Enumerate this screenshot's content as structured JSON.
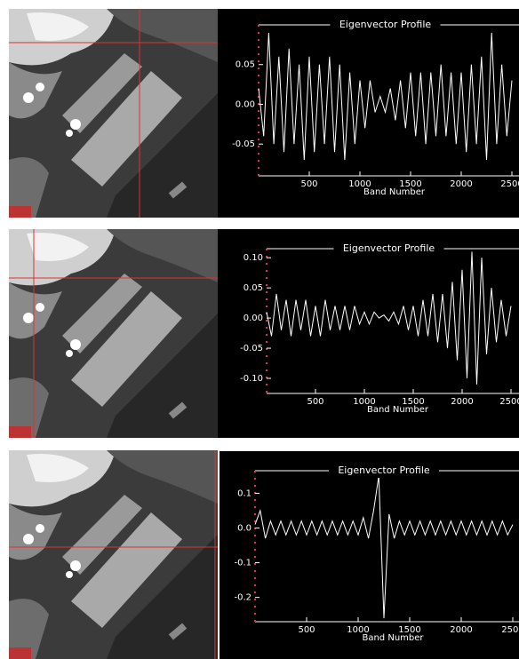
{
  "chart_data": [
    {
      "type": "line",
      "title": "Eigenvector Profile",
      "x_label": "Band Number",
      "color": "#ffffff",
      "x": [
        0,
        50,
        100,
        150,
        200,
        250,
        300,
        350,
        400,
        450,
        500,
        550,
        600,
        650,
        700,
        750,
        800,
        850,
        900,
        950,
        1000,
        1050,
        1100,
        1150,
        1200,
        1250,
        1300,
        1350,
        1400,
        1450,
        1500,
        1550,
        1600,
        1650,
        1700,
        1750,
        1800,
        1850,
        1900,
        1950,
        2000,
        2050,
        2100,
        2150,
        2200,
        2250,
        2300,
        2350,
        2400,
        2450,
        2500
      ],
      "values": [
        0.02,
        -0.04,
        0.09,
        -0.05,
        0.06,
        -0.06,
        0.07,
        -0.05,
        0.05,
        -0.07,
        0.06,
        -0.06,
        0.05,
        -0.05,
        0.06,
        -0.06,
        0.05,
        -0.07,
        0.04,
        -0.05,
        0.03,
        -0.03,
        0.03,
        -0.01,
        0.01,
        -0.01,
        0.02,
        -0.02,
        0.03,
        -0.03,
        0.04,
        -0.04,
        0.04,
        -0.05,
        0.04,
        -0.04,
        0.05,
        -0.04,
        0.04,
        -0.05,
        0.04,
        -0.06,
        0.05,
        -0.05,
        0.06,
        -0.07,
        0.09,
        -0.05,
        0.05,
        -0.04,
        0.03
      ],
      "xlim": [
        0,
        2500
      ],
      "ylim": [
        -0.09,
        0.1
      ],
      "xticks": [
        500,
        1000,
        1500,
        2000,
        2500
      ],
      "yticks": [
        0.05,
        {
          "value": 0,
          "label": "0.00"
        },
        -0.05
      ]
    },
    {
      "type": "line",
      "title": "Eigenvector Profile",
      "x_label": "Band Number",
      "color": "#ffffff",
      "x": [
        0,
        50,
        100,
        150,
        200,
        250,
        300,
        350,
        400,
        450,
        500,
        550,
        600,
        650,
        700,
        750,
        800,
        850,
        900,
        950,
        1000,
        1050,
        1100,
        1150,
        1200,
        1250,
        1300,
        1350,
        1400,
        1450,
        1500,
        1550,
        1600,
        1650,
        1700,
        1750,
        1800,
        1850,
        1900,
        1950,
        2000,
        2050,
        2100,
        2150,
        2200,
        2250,
        2300,
        2350,
        2400,
        2450,
        2500
      ],
      "values": [
        0.01,
        -0.03,
        0.04,
        -0.02,
        0.03,
        -0.03,
        0.03,
        -0.02,
        0.03,
        -0.03,
        0.02,
        -0.03,
        0.03,
        -0.02,
        0.02,
        -0.02,
        0.02,
        -0.02,
        0.02,
        -0.01,
        0.01,
        -0.01,
        0.01,
        0,
        0.005,
        -0.005,
        0.01,
        -0.01,
        0.02,
        -0.02,
        0.02,
        -0.03,
        0.03,
        -0.03,
        0.04,
        -0.04,
        0.04,
        -0.05,
        0.06,
        -0.07,
        0.08,
        -0.1,
        0.11,
        -0.11,
        0.1,
        -0.06,
        0.05,
        -0.04,
        0.03,
        -0.03,
        0.02
      ],
      "xlim": [
        0,
        2500
      ],
      "ylim": [
        -0.125,
        0.115
      ],
      "xticks": [
        500,
        1000,
        1500,
        2000,
        2500
      ],
      "yticks": [
        {
          "value": 0.1,
          "label": "0.10"
        },
        0.05,
        {
          "value": 0,
          "label": "0.00"
        },
        -0.05,
        {
          "value": -0.1,
          "label": "-0.10"
        }
      ]
    },
    {
      "type": "line",
      "title": "Eigenvector Profile",
      "x_label": "Band Number",
      "color": "#ffffff",
      "x": [
        0,
        50,
        100,
        150,
        200,
        250,
        300,
        350,
        400,
        450,
        500,
        550,
        600,
        650,
        700,
        750,
        800,
        850,
        900,
        950,
        1000,
        1050,
        1100,
        1150,
        1200,
        1250,
        1300,
        1350,
        1400,
        1450,
        1500,
        1550,
        1600,
        1650,
        1700,
        1750,
        1800,
        1850,
        1900,
        1950,
        2000,
        2050,
        2100,
        2150,
        2200,
        2250,
        2300,
        2350,
        2400,
        2450,
        2500
      ],
      "values": [
        0.01,
        0.05,
        -0.03,
        0.02,
        -0.02,
        0.02,
        -0.02,
        0.02,
        -0.02,
        0.02,
        -0.02,
        0.02,
        -0.02,
        0.02,
        -0.02,
        0.02,
        -0.02,
        0.02,
        -0.02,
        0.02,
        -0.02,
        0.03,
        -0.03,
        0.05,
        0.15,
        -0.26,
        0.04,
        -0.03,
        0.02,
        -0.02,
        0.02,
        -0.02,
        0.02,
        -0.02,
        0.02,
        -0.02,
        0.02,
        -0.02,
        0.02,
        -0.02,
        0.02,
        -0.02,
        0.02,
        -0.02,
        0.02,
        -0.02,
        0.02,
        -0.02,
        0.02,
        -0.02,
        0.01
      ],
      "xlim": [
        0,
        2500
      ],
      "ylim": [
        -0.27,
        0.165
      ],
      "xticks": [
        500,
        1000,
        1500,
        2000,
        2500
      ],
      "yticks": [
        0.1,
        {
          "value": 0,
          "label": "0.0"
        },
        -0.1,
        -0.2
      ]
    }
  ]
}
